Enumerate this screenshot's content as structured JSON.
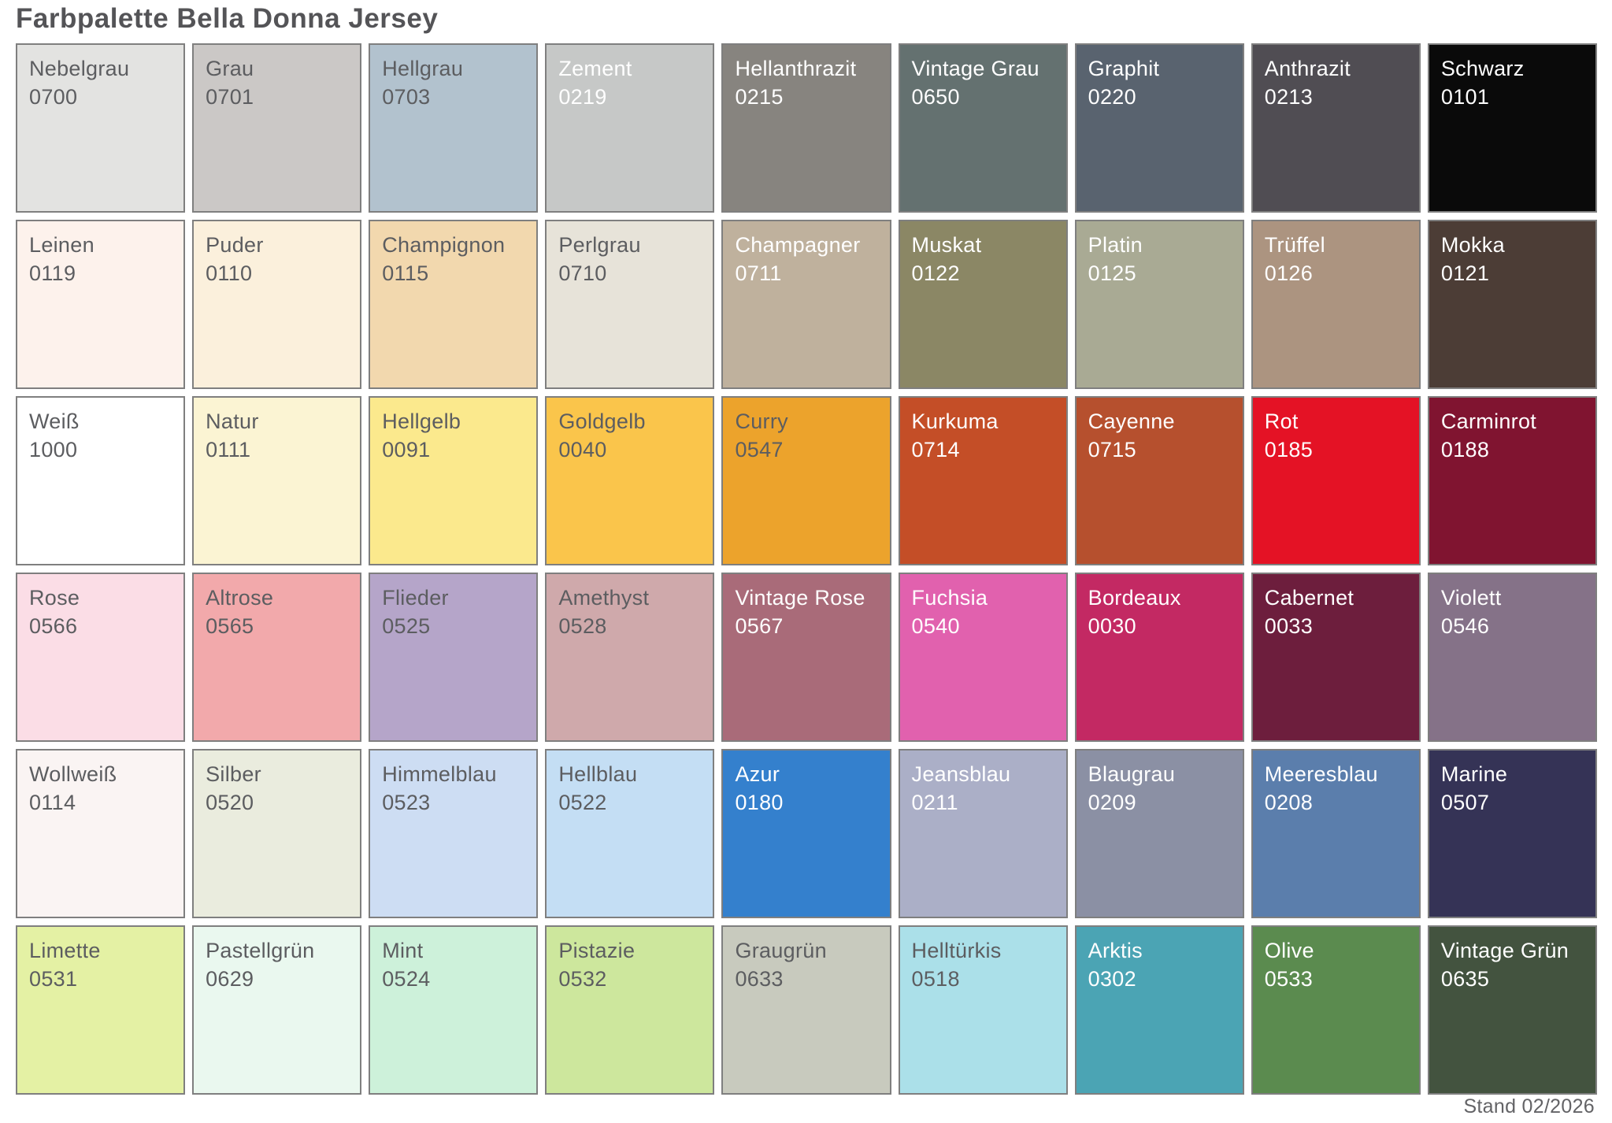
{
  "title": "Farbpalette Bella Donna Jersey",
  "footer": "Stand 02/2026",
  "colors": {
    "page_background": "#ffffff",
    "cell_border": "#7f7f7f",
    "title_text": "#545457",
    "footer_text": "#636366",
    "swatch_text_dark": "#5c5d60",
    "swatch_text_light": "#ffffff"
  },
  "palette": {
    "columns": 9,
    "rows": 6,
    "swatches": [
      {
        "name": "Nebelgrau",
        "code": "0700",
        "bg": "#e3e3e1",
        "fg": "#5c5d60"
      },
      {
        "name": "Grau",
        "code": "0701",
        "bg": "#cbc8c6",
        "fg": "#5c5d60"
      },
      {
        "name": "Hellgrau",
        "code": "0703",
        "bg": "#b2c2ce",
        "fg": "#5c5d60"
      },
      {
        "name": "Zement",
        "code": "0219",
        "bg": "#c6c8c7",
        "fg": "#ffffff"
      },
      {
        "name": "Hellanthrazit",
        "code": "0215",
        "bg": "#87847f",
        "fg": "#ffffff"
      },
      {
        "name": "Vintage Grau",
        "code": "0650",
        "bg": "#647170",
        "fg": "#ffffff"
      },
      {
        "name": "Graphit",
        "code": "0220",
        "bg": "#59636f",
        "fg": "#ffffff"
      },
      {
        "name": "Anthrazit",
        "code": "0213",
        "bg": "#504d53",
        "fg": "#ffffff"
      },
      {
        "name": "Schwarz",
        "code": "0101",
        "bg": "#0a0a0a",
        "fg": "#ffffff"
      },
      {
        "name": "Leinen",
        "code": "0119",
        "bg": "#fdf2ec",
        "fg": "#5c5d60"
      },
      {
        "name": "Puder",
        "code": "0110",
        "bg": "#fbf0dc",
        "fg": "#5c5d60"
      },
      {
        "name": "Champignon",
        "code": "0115",
        "bg": "#f2d8ae",
        "fg": "#5c5d60"
      },
      {
        "name": "Perlgrau",
        "code": "0710",
        "bg": "#e7e3d9",
        "fg": "#5c5d60"
      },
      {
        "name": "Champagner",
        "code": "0711",
        "bg": "#bfb19d",
        "fg": "#ffffff"
      },
      {
        "name": "Muskat",
        "code": "0122",
        "bg": "#8b8765",
        "fg": "#ffffff"
      },
      {
        "name": "Platin",
        "code": "0125",
        "bg": "#a9aa94",
        "fg": "#ffffff"
      },
      {
        "name": "Trüffel",
        "code": "0126",
        "bg": "#ac9480",
        "fg": "#ffffff"
      },
      {
        "name": "Mokka",
        "code": "0121",
        "bg": "#4c3d36",
        "fg": "#ffffff"
      },
      {
        "name": "Weiß",
        "code": "1000",
        "bg": "#ffffff",
        "fg": "#5c5d60"
      },
      {
        "name": "Natur",
        "code": "0111",
        "bg": "#fbf4d3",
        "fg": "#5c5d60"
      },
      {
        "name": "Hellgelb",
        "code": "0091",
        "bg": "#fbe98d",
        "fg": "#5c5d60"
      },
      {
        "name": "Goldgelb",
        "code": "0040",
        "bg": "#fac54b",
        "fg": "#5c5d60"
      },
      {
        "name": "Curry",
        "code": "0547",
        "bg": "#eca32c",
        "fg": "#5c5d60"
      },
      {
        "name": "Kurkuma",
        "code": "0714",
        "bg": "#c44e27",
        "fg": "#ffffff"
      },
      {
        "name": "Cayenne",
        "code": "0715",
        "bg": "#b6502e",
        "fg": "#ffffff"
      },
      {
        "name": "Rot",
        "code": "0185",
        "bg": "#e41225",
        "fg": "#ffffff"
      },
      {
        "name": "Carminrot",
        "code": "0188",
        "bg": "#801430",
        "fg": "#ffffff"
      },
      {
        "name": "Rose",
        "code": "0566",
        "bg": "#fbdde6",
        "fg": "#5c5d60"
      },
      {
        "name": "Altrose",
        "code": "0565",
        "bg": "#f2a9ab",
        "fg": "#5c5d60"
      },
      {
        "name": "Flieder",
        "code": "0525",
        "bg": "#b5a5c9",
        "fg": "#5c5d60"
      },
      {
        "name": "Amethyst",
        "code": "0528",
        "bg": "#cfa9ab",
        "fg": "#5c5d60"
      },
      {
        "name": "Vintage Rose",
        "code": "0567",
        "bg": "#a96b79",
        "fg": "#ffffff"
      },
      {
        "name": "Fuchsia",
        "code": "0540",
        "bg": "#e161ae",
        "fg": "#ffffff"
      },
      {
        "name": "Bordeaux",
        "code": "0030",
        "bg": "#c32963",
        "fg": "#ffffff"
      },
      {
        "name": "Cabernet",
        "code": "0033",
        "bg": "#6d1e3d",
        "fg": "#ffffff"
      },
      {
        "name": "Violett",
        "code": "0546",
        "bg": "#857288",
        "fg": "#ffffff"
      },
      {
        "name": "Wollweiß",
        "code": "0114",
        "bg": "#faf4f3",
        "fg": "#5c5d60"
      },
      {
        "name": "Silber",
        "code": "0520",
        "bg": "#eaecde",
        "fg": "#5c5d60"
      },
      {
        "name": "Himmelblau",
        "code": "0523",
        "bg": "#cdddf3",
        "fg": "#5c5d60"
      },
      {
        "name": "Hellblau",
        "code": "0522",
        "bg": "#c4def4",
        "fg": "#5c5d60"
      },
      {
        "name": "Azur",
        "code": "0180",
        "bg": "#3480cd",
        "fg": "#ffffff"
      },
      {
        "name": "Jeansblau",
        "code": "0211",
        "bg": "#abafc7",
        "fg": "#ffffff"
      },
      {
        "name": "Blaugrau",
        "code": "0209",
        "bg": "#8b90a4",
        "fg": "#ffffff"
      },
      {
        "name": "Meeresblau",
        "code": "0208",
        "bg": "#5b7eac",
        "fg": "#ffffff"
      },
      {
        "name": "Marine",
        "code": "0507",
        "bg": "#353356",
        "fg": "#ffffff"
      },
      {
        "name": "Limette",
        "code": "0531",
        "bg": "#e4f1a4",
        "fg": "#5c5d60"
      },
      {
        "name": "Pastellgrün",
        "code": "0629",
        "bg": "#eaf8ef",
        "fg": "#5c5d60"
      },
      {
        "name": "Mint",
        "code": "0524",
        "bg": "#cdf1da",
        "fg": "#5c5d60"
      },
      {
        "name": "Pistazie",
        "code": "0532",
        "bg": "#cde79d",
        "fg": "#5c5d60"
      },
      {
        "name": "Graugrün",
        "code": "0633",
        "bg": "#c8cabe",
        "fg": "#5c5d60"
      },
      {
        "name": "Helltürkis",
        "code": "0518",
        "bg": "#abe0e9",
        "fg": "#5c5d60"
      },
      {
        "name": "Arktis",
        "code": "0302",
        "bg": "#4ba4b4",
        "fg": "#ffffff"
      },
      {
        "name": "Olive",
        "code": "0533",
        "bg": "#5b8b4f",
        "fg": "#ffffff"
      },
      {
        "name": "Vintage Grün",
        "code": "0635",
        "bg": "#43533f",
        "fg": "#ffffff"
      }
    ]
  }
}
